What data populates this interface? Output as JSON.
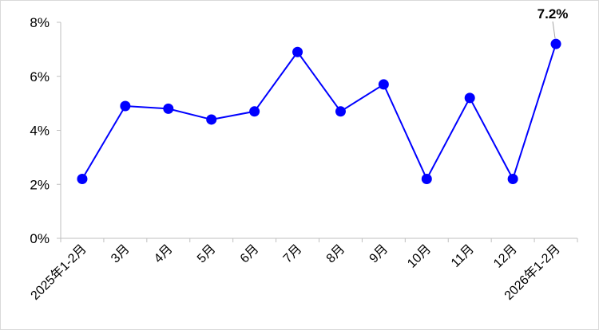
{
  "chart_data": {
    "type": "line",
    "categories": [
      "2025年1-2月",
      "3月",
      "4月",
      "5月",
      "6月",
      "7月",
      "8月",
      "9月",
      "10月",
      "11月",
      "12月",
      "2026年1-2月"
    ],
    "series": [
      {
        "values": [
          2.2,
          4.9,
          4.8,
          4.4,
          4.7,
          6.9,
          4.7,
          5.7,
          2.2,
          5.2,
          2.2,
          7.2
        ],
        "color": "#0000ff"
      }
    ],
    "yticks": [
      "0%",
      "2%",
      "4%",
      "6%",
      "8%"
    ],
    "ylim": [
      0,
      8
    ],
    "grid": false,
    "annotations": [
      {
        "category": "2026年1-2月",
        "text": "7.2%"
      }
    ],
    "title": "",
    "xlabel": "",
    "ylabel": ""
  }
}
